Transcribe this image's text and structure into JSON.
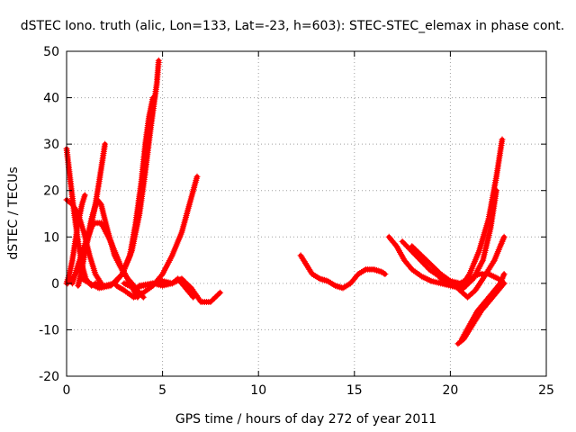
{
  "chart_data": {
    "type": "scatter",
    "title": "dSTEC Iono. truth (alic, Lon=133, Lat=-23, h=603): STEC-STEC_elemax in phase cont.",
    "xlabel": "GPS time / hours of day 272 of year 2011",
    "ylabel": "dSTEC  / TECUs",
    "xlim": [
      0,
      25
    ],
    "ylim": [
      -20,
      50
    ],
    "xticks": [
      0,
      5,
      10,
      15,
      20,
      25
    ],
    "yticks": [
      -20,
      -10,
      0,
      10,
      20,
      30,
      40,
      50
    ],
    "grid": true,
    "legend": "none",
    "marker": "+",
    "color": "#ff0000",
    "series": [
      {
        "x": [
          0.0,
          0.2,
          0.4,
          0.6,
          0.8,
          1.0,
          1.3
        ],
        "y": [
          29,
          22,
          15,
          9,
          4,
          1,
          -0.5
        ]
      },
      {
        "x": [
          0.0,
          0.3,
          0.6,
          0.9,
          1.2,
          1.5,
          1.8
        ],
        "y": [
          18,
          17,
          15,
          11,
          6,
          2,
          0
        ]
      },
      {
        "x": [
          0.0,
          0.15,
          0.3,
          0.45,
          0.6,
          0.8,
          0.95
        ],
        "y": [
          0,
          2,
          5,
          9,
          13,
          17,
          19
        ]
      },
      {
        "x": [
          0.05,
          0.3,
          0.6,
          0.9,
          1.2,
          1.5,
          1.7,
          1.85,
          2.0
        ],
        "y": [
          0,
          1,
          3,
          6,
          11,
          17,
          22,
          26,
          30
        ]
      },
      {
        "x": [
          0.3,
          0.6,
          1.0,
          1.4,
          1.8,
          2.3,
          2.8,
          3.3,
          3.7
        ],
        "y": [
          0,
          4,
          9,
          13,
          13,
          9,
          4,
          0,
          -3
        ]
      },
      {
        "x": [
          0.6,
          0.8,
          1.0,
          1.3,
          1.6,
          1.8,
          2.1,
          2.5,
          3.0,
          3.4,
          3.8,
          4.0
        ],
        "y": [
          -0.5,
          3,
          8,
          14,
          18,
          17,
          12,
          6,
          2,
          0,
          -2,
          -3
        ]
      },
      {
        "x": [
          0.8,
          1.2,
          1.7,
          2.3,
          2.9,
          3.4,
          3.8,
          4.1,
          4.4,
          4.7,
          4.8
        ],
        "y": [
          1,
          0,
          -1,
          -0.5,
          2,
          7,
          15,
          24,
          34,
          43,
          48
        ]
      },
      {
        "x": [
          1.5,
          2.0,
          2.5,
          2.9,
          3.3,
          3.6,
          3.9,
          4.1,
          4.3,
          4.5
        ],
        "y": [
          0,
          -0.5,
          0,
          2,
          6,
          13,
          22,
          30,
          36,
          40
        ]
      },
      {
        "x": [
          2.6,
          3.0,
          3.5,
          4.0,
          4.5,
          5.0,
          5.5,
          6.0,
          6.4,
          6.8
        ],
        "y": [
          -0.5,
          -1.5,
          -3,
          -2,
          -0.5,
          2,
          6,
          11,
          17,
          23
        ]
      },
      {
        "x": [
          3.8,
          4.5,
          5.0,
          5.5,
          6.0,
          6.5,
          7.0,
          7.5,
          8.0
        ],
        "y": [
          -0.5,
          0,
          0.5,
          0,
          1,
          -1,
          -4,
          -4,
          -2
        ]
      },
      {
        "x": [
          3.0,
          3.5,
          4.0,
          4.5,
          5.0,
          5.5,
          5.8,
          6.2,
          6.6
        ],
        "y": [
          0,
          -1,
          -0.5,
          0,
          -0.5,
          0,
          1,
          -1,
          -3
        ]
      },
      {
        "x": [
          12.2,
          12.5,
          12.8,
          13.2,
          13.6,
          14.0,
          14.4,
          14.8,
          15.2,
          15.6,
          16.0,
          16.4,
          16.6
        ],
        "y": [
          6,
          4,
          2,
          1,
          0.5,
          -0.5,
          -1,
          0,
          2,
          3,
          3,
          2.5,
          2
        ]
      },
      {
        "x": [
          16.8,
          17.2,
          17.6,
          18.0,
          18.5,
          19.0,
          19.5,
          20.0,
          20.5,
          21.0,
          21.5,
          22.0,
          22.4,
          22.7
        ],
        "y": [
          10,
          8,
          5,
          3,
          1.5,
          0.5,
          0,
          -0.5,
          -1,
          2,
          7,
          14,
          23,
          31
        ]
      },
      {
        "x": [
          18.0,
          18.5,
          19.0,
          19.5,
          20.0,
          20.5,
          20.9,
          21.3,
          21.7,
          22.0,
          22.3,
          22.6,
          22.8
        ],
        "y": [
          8,
          6,
          4,
          2,
          0.5,
          -1.5,
          -3,
          -1.5,
          1,
          3,
          5,
          8,
          10
        ]
      },
      {
        "x": [
          17.5,
          18.2,
          18.9,
          19.6,
          20.2,
          20.7,
          21.2,
          21.7,
          22.1,
          22.4
        ],
        "y": [
          9,
          6,
          3,
          1,
          -0.5,
          -1,
          1,
          5,
          12,
          20
        ]
      },
      {
        "x": [
          19.5,
          20.0,
          20.5,
          21.0,
          21.5,
          22.0,
          22.5,
          22.8
        ],
        "y": [
          1,
          0.5,
          0,
          1,
          2,
          2,
          1,
          0
        ]
      },
      {
        "x": [
          20.4,
          20.7,
          21.0,
          21.3,
          21.6,
          22.0,
          22.4,
          22.8
        ],
        "y": [
          -13,
          -12,
          -10,
          -8,
          -6,
          -4,
          -2,
          0
        ]
      },
      {
        "x": [
          20.6,
          21.0,
          21.4,
          21.8,
          22.2,
          22.6,
          22.8
        ],
        "y": [
          -12,
          -9,
          -6,
          -4,
          -2,
          0,
          2
        ]
      }
    ]
  }
}
